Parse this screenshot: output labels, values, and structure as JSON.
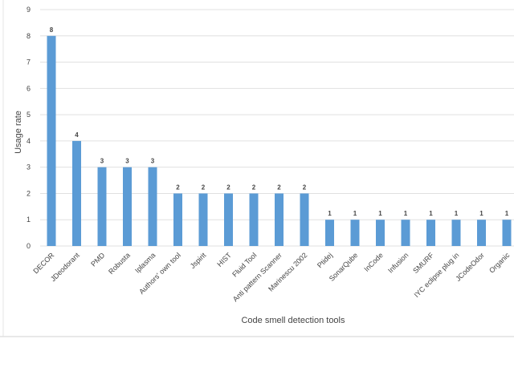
{
  "chart_data": {
    "type": "bar",
    "title": "",
    "xlabel": "Code smell detection tools",
    "ylabel": "Usage rate",
    "ylim": [
      0,
      9
    ],
    "yticks": [
      0,
      1,
      2,
      3,
      4,
      5,
      6,
      7,
      8,
      9
    ],
    "grid": true,
    "bar_color": "#5b9bd5",
    "categories": [
      "DECOR",
      "JDeodorant",
      "PMD",
      "Robusta",
      "Iplasma",
      "Authors' own tool",
      "Jspirit",
      "HIST",
      "Fluid Tool",
      "Anti pattern Scanner",
      "Marinescu 2002",
      "Ptidej",
      "SonarQube",
      "InCode",
      "Infusion",
      "SMURF",
      "IYC eclipse plug in",
      "JCodeOdor",
      "Organic"
    ],
    "values": [
      8,
      4,
      3,
      3,
      3,
      2,
      2,
      2,
      2,
      2,
      2,
      1,
      1,
      1,
      1,
      1,
      1,
      1,
      1
    ]
  }
}
